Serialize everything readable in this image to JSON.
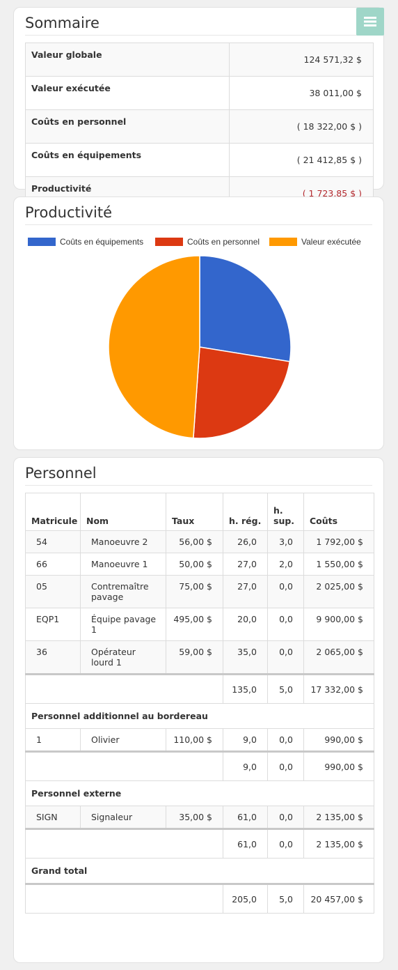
{
  "summary": {
    "title": "Sommaire",
    "rows": [
      {
        "label": "Valeur globale",
        "value": "124 571,32 $",
        "negative": false
      },
      {
        "label": "Valeur exécutée",
        "value": "38 011,00 $",
        "negative": false
      },
      {
        "label": "Coûts en personnel",
        "value": "( 18 322,00 $ )",
        "negative": false
      },
      {
        "label": "Coûts en équipements",
        "value": "( 21 412,85 $ )",
        "negative": false
      },
      {
        "label": "Productivité",
        "value": "( 1 723,85 $ )",
        "negative": true
      }
    ]
  },
  "productivity": {
    "title": "Productivité"
  },
  "chart_data": {
    "type": "pie",
    "legend_position": "top",
    "categories": [
      "Coûts en équipements",
      "Coûts en personnel",
      "Valeur exécutée"
    ],
    "values": [
      21412.85,
      18322.0,
      38011.0
    ],
    "colors": [
      "#3366cc",
      "#dc3912",
      "#ff9900"
    ]
  },
  "personnel": {
    "title": "Personnel",
    "headers": [
      "Matricule",
      "Nom",
      "Taux",
      "h. rég.",
      "h. sup.",
      "Coûts"
    ],
    "rows": [
      {
        "matricule": "54",
        "nom": "Manoeuvre 2",
        "taux": "56,00 $",
        "hreg": "26,0",
        "hsup": "3,0",
        "couts": "1 792,00 $"
      },
      {
        "matricule": "66",
        "nom": "Manoeuvre 1",
        "taux": "50,00 $",
        "hreg": "27,0",
        "hsup": "2,0",
        "couts": "1 550,00 $"
      },
      {
        "matricule": "05",
        "nom": "Contremaître pavage",
        "taux": "75,00 $",
        "hreg": "27,0",
        "hsup": "0,0",
        "couts": "2 025,00 $"
      },
      {
        "matricule": "EQP1",
        "nom": "Équipe pavage 1",
        "taux": "495,00 $",
        "hreg": "20,0",
        "hsup": "0,0",
        "couts": "9 900,00 $"
      },
      {
        "matricule": "36",
        "nom": "Opérateur lourd 1",
        "taux": "59,00 $",
        "hreg": "35,0",
        "hsup": "0,0",
        "couts": "2 065,00 $"
      }
    ],
    "subtotal": {
      "hreg": "135,0",
      "hsup": "5,0",
      "couts": "17 332,00 $"
    },
    "additional": {
      "label": "Personnel additionnel au bordereau",
      "rows": [
        {
          "matricule": "1",
          "nom": "Olivier",
          "taux": "110,00 $",
          "hreg": "9,0",
          "hsup": "0,0",
          "couts": "990,00 $"
        }
      ],
      "subtotal": {
        "hreg": "9,0",
        "hsup": "0,0",
        "couts": "990,00 $"
      }
    },
    "external": {
      "label": "Personnel externe",
      "rows": [
        {
          "matricule": "SIGN",
          "nom": "Signaleur",
          "taux": "35,00 $",
          "hreg": "61,0",
          "hsup": "0,0",
          "couts": "2 135,00 $"
        }
      ],
      "subtotal": {
        "hreg": "61,0",
        "hsup": "0,0",
        "couts": "2 135,00 $"
      }
    },
    "grand_total": {
      "label": "Grand total",
      "hreg": "205,0",
      "hsup": "5,0",
      "couts": "20 457,00 $"
    }
  }
}
